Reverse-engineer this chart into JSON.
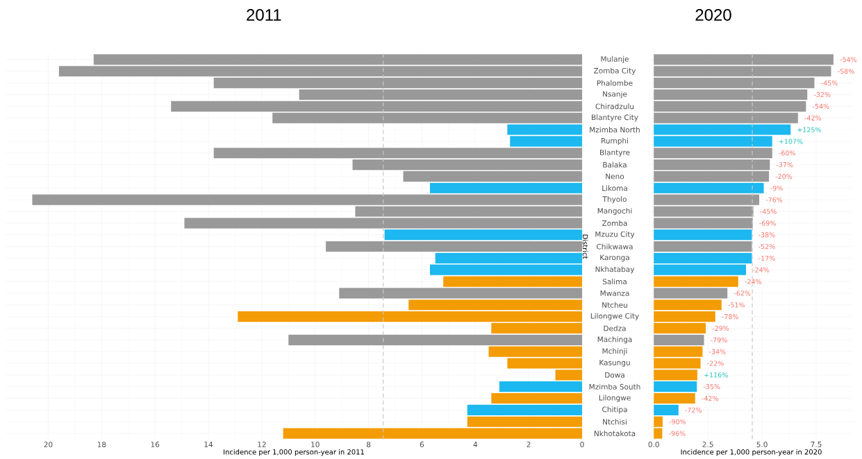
{
  "chart_data": [
    {
      "type": "bar",
      "orientation": "horizontal",
      "title": "2011",
      "xlabel": "Incidence per 1,000 person-year in 2011",
      "categories": [
        "Mulanje",
        "Zomba City",
        "Phalombe",
        "Nsanje",
        "Chiradzulu",
        "Blantyre City",
        "Mzimba North",
        "Rumphi",
        "Blantyre",
        "Balaka",
        "Neno",
        "Likoma",
        "Thyolo",
        "Mangochi",
        "Zomba",
        "Mzuzu City",
        "Chikwawa",
        "Karonga",
        "Nkhatabay",
        "Salima",
        "Mwanza",
        "Ntcheu",
        "Lilongwe City",
        "Dedza",
        "Machinga",
        "Mchinji",
        "Kasungu",
        "Dowa",
        "Mzimba South",
        "Lilongwe",
        "Chitipa",
        "Ntchisi",
        "Nkhotakota"
      ],
      "values": [
        18.3,
        19.6,
        13.8,
        10.6,
        15.4,
        11.6,
        2.8,
        2.7,
        13.8,
        8.6,
        6.7,
        5.7,
        20.6,
        8.5,
        14.9,
        7.4,
        9.6,
        5.5,
        5.7,
        5.2,
        9.1,
        6.5,
        12.9,
        3.4,
        11.0,
        3.5,
        2.8,
        1.0,
        3.1,
        3.4,
        4.3,
        4.3,
        11.2
      ],
      "colors": [
        "#999999",
        "#999999",
        "#999999",
        "#999999",
        "#999999",
        "#999999",
        "#1cb8ef",
        "#1cb8ef",
        "#999999",
        "#999999",
        "#999999",
        "#1cb8ef",
        "#999999",
        "#999999",
        "#999999",
        "#1cb8ef",
        "#999999",
        "#1cb8ef",
        "#1cb8ef",
        "#f39c05",
        "#999999",
        "#f39c05",
        "#f39c05",
        "#f39c05",
        "#999999",
        "#f39c05",
        "#f39c05",
        "#f39c05",
        "#1cb8ef",
        "#f39c05",
        "#1cb8ef",
        "#f39c05",
        "#f39c05"
      ],
      "xlim": [
        21.6,
        0
      ],
      "xticks": [
        20,
        18,
        16,
        14,
        12,
        10,
        8,
        6,
        4,
        2,
        0
      ],
      "ref_lines": [
        {
          "axis": "x",
          "value": 7.45,
          "color": "#c8c8c8",
          "line_style": "dashed"
        }
      ],
      "grid": true,
      "tick_labels": "x"
    },
    {
      "type": "bar",
      "orientation": "horizontal",
      "title": "2020",
      "xlabel": "Incidence per 1,000 person-year in 2020",
      "ylabel": "District",
      "categories": [
        "Mulanje",
        "Zomba City",
        "Phalombe",
        "Nsanje",
        "Chiradzulu",
        "Blantyre City",
        "Mzimba North",
        "Rumphi",
        "Blantyre",
        "Balaka",
        "Neno",
        "Likoma",
        "Thyolo",
        "Mangochi",
        "Zomba",
        "Mzuzu City",
        "Chikwawa",
        "Karonga",
        "Nkhatabay",
        "Salima",
        "Mwanza",
        "Ntcheu",
        "Lilongwe City",
        "Dedza",
        "Machinga",
        "Mchinji",
        "Kasungu",
        "Dowa",
        "Mzimba South",
        "Lilongwe",
        "Chitipa",
        "Ntchisi",
        "Nkhotakota"
      ],
      "values": [
        8.3,
        8.19,
        7.42,
        7.09,
        7.03,
        6.66,
        6.32,
        5.47,
        5.47,
        5.36,
        5.32,
        5.08,
        4.87,
        4.6,
        4.57,
        4.53,
        4.53,
        4.53,
        4.26,
        3.9,
        3.4,
        3.13,
        2.84,
        2.4,
        2.32,
        2.25,
        2.16,
        2.01,
        1.99,
        1.91,
        1.14,
        0.41,
        0.39
      ],
      "colors": [
        "#999999",
        "#999999",
        "#999999",
        "#999999",
        "#999999",
        "#999999",
        "#1cb8ef",
        "#1cb8ef",
        "#999999",
        "#999999",
        "#999999",
        "#1cb8ef",
        "#999999",
        "#999999",
        "#999999",
        "#1cb8ef",
        "#999999",
        "#1cb8ef",
        "#1cb8ef",
        "#f39c05",
        "#999999",
        "#f39c05",
        "#f39c05",
        "#f39c05",
        "#999999",
        "#f39c05",
        "#f39c05",
        "#f39c05",
        "#1cb8ef",
        "#f39c05",
        "#1cb8ef",
        "#f39c05",
        "#f39c05"
      ],
      "annotations": [
        {
          "text": "-54%",
          "x": 8.3,
          "y": "Mulanje"
        },
        {
          "text": "-58%",
          "x": 8.19,
          "y": "Zomba City"
        },
        {
          "text": "-45%",
          "x": 7.42,
          "y": "Phalombe"
        },
        {
          "text": "-32%",
          "x": 7.09,
          "y": "Nsanje"
        },
        {
          "text": "-54%",
          "x": 7.03,
          "y": "Chiradzulu"
        },
        {
          "text": "-42%",
          "x": 6.66,
          "y": "Blantyre City"
        },
        {
          "text": "+125%",
          "x": 6.32,
          "y": "Mzimba North"
        },
        {
          "text": "+107%",
          "x": 5.47,
          "y": "Rumphi"
        },
        {
          "text": "-60%",
          "x": 5.47,
          "y": "Blantyre"
        },
        {
          "text": "-37%",
          "x": 5.36,
          "y": "Balaka"
        },
        {
          "text": "-20%",
          "x": 5.32,
          "y": "Neno"
        },
        {
          "text": "-9%",
          "x": 5.08,
          "y": "Likoma"
        },
        {
          "text": "-76%",
          "x": 4.87,
          "y": "Thyolo"
        },
        {
          "text": "-45%",
          "x": 4.6,
          "y": "Mangochi"
        },
        {
          "text": "-69%",
          "x": 4.57,
          "y": "Zomba"
        },
        {
          "text": "-38%",
          "x": 4.53,
          "y": "Mzuzu City"
        },
        {
          "text": "-52%",
          "x": 4.53,
          "y": "Chikwawa"
        },
        {
          "text": "-17%",
          "x": 4.53,
          "y": "Karonga"
        },
        {
          "text": "-24%",
          "x": 4.26,
          "y": "Nkhatabay"
        },
        {
          "text": "-24%",
          "x": 3.9,
          "y": "Salima"
        },
        {
          "text": "-62%",
          "x": 3.4,
          "y": "Mwanza"
        },
        {
          "text": "-51%",
          "x": 3.13,
          "y": "Ntcheu"
        },
        {
          "text": "-78%",
          "x": 2.84,
          "y": "Lilongwe City"
        },
        {
          "text": "-29%",
          "x": 2.4,
          "y": "Dedza"
        },
        {
          "text": "-79%",
          "x": 2.32,
          "y": "Machinga"
        },
        {
          "text": "-34%",
          "x": 2.25,
          "y": "Mchinji"
        },
        {
          "text": "-22%",
          "x": 2.16,
          "y": "Kasungu"
        },
        {
          "text": "+116%",
          "x": 2.01,
          "y": "Dowa"
        },
        {
          "text": "-35%",
          "x": 1.99,
          "y": "Mzimba South"
        },
        {
          "text": "-42%",
          "x": 1.91,
          "y": "Lilongwe"
        },
        {
          "text": "-72%",
          "x": 1.14,
          "y": "Chitipa"
        },
        {
          "text": "-90%",
          "x": 0.41,
          "y": "Ntchisi"
        },
        {
          "text": "-96%",
          "x": 0.39,
          "y": "Nkhotakota"
        }
      ],
      "xlim": [
        -0.2,
        9.2
      ],
      "xticks": [
        {
          "value": 0,
          "label": "0.0"
        },
        2.5,
        {
          "value": 5,
          "label": "5.0"
        },
        7.5
      ],
      "ref_lines": [
        {
          "axis": "x",
          "value": 4.55,
          "color": "#c8c8c8",
          "line_style": "dashed"
        }
      ],
      "grid": true
    }
  ]
}
